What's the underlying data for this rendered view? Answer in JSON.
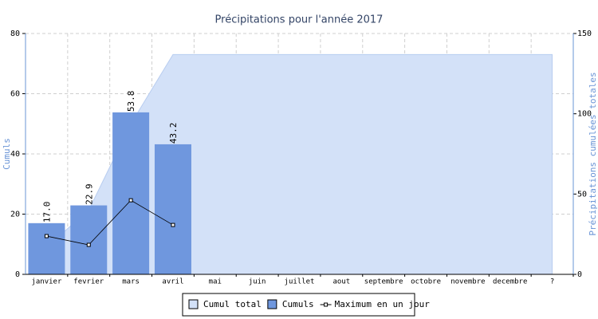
{
  "chart_data": {
    "type": "combo",
    "title": "Précipitations pour l'année 2017",
    "ylabel": "Cumuls",
    "y2label": "Précipitations cumulées totales",
    "categories": [
      "janvier",
      "fevrier",
      "mars",
      "avril",
      "mai",
      "juin",
      "juillet",
      "aout",
      "septembre",
      "octobre",
      "novembre",
      "decembre",
      "?"
    ],
    "ylim": [
      0,
      80
    ],
    "yticks": [
      0,
      20,
      40,
      60,
      80
    ],
    "y2lim": [
      0,
      150
    ],
    "y2ticks": [
      0,
      50,
      100,
      150
    ],
    "grid": true,
    "legend": "bottom",
    "series": [
      {
        "name": "Cumul total",
        "type": "area",
        "axis": "y2",
        "color": "#d3e1f8",
        "values": [
          17.0,
          39.9,
          93.7,
          136.9,
          136.9,
          136.9,
          136.9,
          136.9,
          136.9,
          136.9,
          136.9,
          136.9,
          136.9
        ]
      },
      {
        "name": "Cumuls",
        "type": "bar",
        "color": "#6f97de",
        "values": [
          17.0,
          22.9,
          53.8,
          43.2,
          null,
          null,
          null,
          null,
          null,
          null,
          null,
          null,
          null
        ],
        "value_labels": [
          "17.0",
          "22.9",
          "53.8",
          "43.2",
          null,
          null,
          null,
          null,
          null,
          null,
          null,
          null,
          null
        ]
      },
      {
        "name": "Maximum en un jour",
        "type": "line",
        "color": "#000000",
        "values": [
          12.7,
          9.8,
          24.6,
          16.4,
          null,
          null,
          null,
          null,
          null,
          null,
          null,
          null,
          null
        ]
      }
    ]
  }
}
